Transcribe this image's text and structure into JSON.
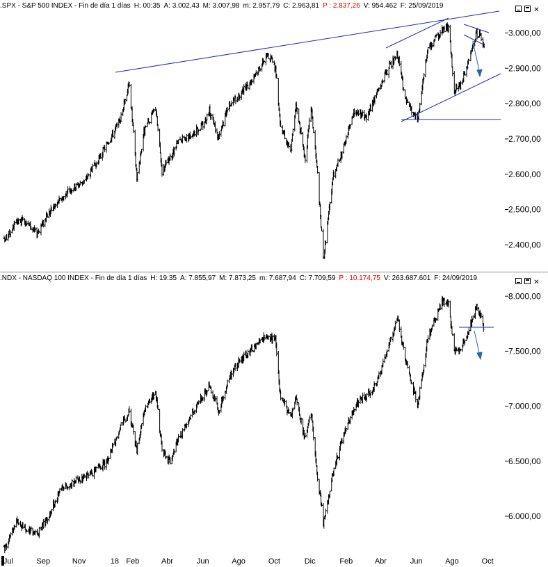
{
  "colors": {
    "trendline": "#1f28b4",
    "arrow": "#2a63a8",
    "price_red": "#e00000",
    "bars": "#000000"
  },
  "spx_header": {
    "symbol": ".SPX - S&P 500 INDEX - Fin de día 1 días",
    "hora": "H: 00:35",
    "apertura": "A: 3.002,43",
    "maximo": "M: 3.007,98",
    "minimo": "m: 2.957,79",
    "cierre": "C: 2.963,81",
    "precio": "P : 2.837,26",
    "volumen": "V: 954.462",
    "fecha": "F: 25/09/2019"
  },
  "ndx_header": {
    "symbol": ".NDX - NASDAQ 100 INDEX - Fin de día 1 días",
    "hora": "H: 19:35",
    "apertura": "A: 7.855,97",
    "maximo": "M: 7.873,25",
    "minimo": "m: 7.687,94",
    "cierre": "C: 7.709,59",
    "precio": "P : 10.174,75",
    "volumen": "V: 263.687.601",
    "fecha": "F: 24/09/2019"
  },
  "window_controls": {
    "minimize": "minimize-icon",
    "maximize": "maximize-icon",
    "close_glyph": "✕"
  },
  "x_axis": {
    "labels": [
      "Jul",
      "Sep",
      "Nov",
      "18",
      "Feb",
      "Abr",
      "Jun",
      "Ago",
      "Oct",
      "Dic",
      "Feb",
      "Abr",
      "Jun",
      "Ago",
      "Oct"
    ]
  },
  "chart_data": [
    {
      "type": "line",
      "name": "S&P 500 INDEX",
      "y_ticks": [
        "2.400,00",
        "2.500,00",
        "2.600,00",
        "2.700,00",
        "2.800,00",
        "2.900,00",
        "3.000,00"
      ],
      "y_tick_values": [
        2400,
        2500,
        2600,
        2700,
        2800,
        2900,
        3000
      ],
      "ylim": [
        2330,
        3050
      ],
      "x": [
        "2017-06-26",
        "2017-07-15",
        "2017-08-01",
        "2017-08-20",
        "2017-09-10",
        "2017-10-01",
        "2017-10-20",
        "2017-11-10",
        "2017-12-01",
        "2017-12-20",
        "2018-01-10",
        "2018-01-26",
        "2018-02-08",
        "2018-02-20",
        "2018-03-12",
        "2018-03-23",
        "2018-04-05",
        "2018-04-20",
        "2018-05-10",
        "2018-06-01",
        "2018-06-12",
        "2018-06-28",
        "2018-07-15",
        "2018-08-01",
        "2018-08-20",
        "2018-09-20",
        "2018-10-03",
        "2018-10-11",
        "2018-10-29",
        "2018-11-07",
        "2018-11-23",
        "2018-12-03",
        "2018-12-14",
        "2018-12-24",
        "2019-01-10",
        "2019-01-25",
        "2019-02-15",
        "2019-03-08",
        "2019-03-25",
        "2019-04-15",
        "2019-04-30",
        "2019-05-13",
        "2019-06-03",
        "2019-06-20",
        "2019-07-15",
        "2019-07-26",
        "2019-08-05",
        "2019-08-15",
        "2019-08-30",
        "2019-09-12",
        "2019-09-20",
        "2019-09-25"
      ],
      "y": [
        2410,
        2460,
        2470,
        2430,
        2490,
        2530,
        2560,
        2580,
        2630,
        2690,
        2750,
        2860,
        2590,
        2720,
        2790,
        2610,
        2640,
        2690,
        2710,
        2740,
        2780,
        2700,
        2800,
        2820,
        2860,
        2940,
        2900,
        2750,
        2660,
        2800,
        2640,
        2790,
        2600,
        2360,
        2600,
        2660,
        2780,
        2760,
        2830,
        2900,
        2940,
        2810,
        2750,
        2950,
        3010,
        3020,
        2840,
        2850,
        2920,
        3000,
        2990,
        2960
      ]
    },
    {
      "type": "line",
      "name": "NASDAQ 100 INDEX",
      "y_ticks": [
        "6.000,00",
        "6.500,00",
        "7.000,00",
        "7.500,00",
        "8.000,00"
      ],
      "y_tick_values": [
        6000,
        6500,
        7000,
        7500,
        8000
      ],
      "ylim": [
        5690,
        8090
      ],
      "x": [
        "2017-06-26",
        "2017-07-15",
        "2017-08-01",
        "2017-08-20",
        "2017-09-10",
        "2017-10-01",
        "2017-10-20",
        "2017-11-10",
        "2017-12-01",
        "2017-12-20",
        "2018-01-10",
        "2018-01-26",
        "2018-02-08",
        "2018-02-20",
        "2018-03-12",
        "2018-03-23",
        "2018-04-05",
        "2018-04-20",
        "2018-05-10",
        "2018-06-01",
        "2018-06-12",
        "2018-06-28",
        "2018-07-15",
        "2018-08-01",
        "2018-08-20",
        "2018-09-20",
        "2018-10-03",
        "2018-10-11",
        "2018-10-29",
        "2018-11-07",
        "2018-11-23",
        "2018-12-03",
        "2018-12-14",
        "2018-12-24",
        "2019-01-10",
        "2019-01-25",
        "2019-02-15",
        "2019-03-08",
        "2019-03-25",
        "2019-04-15",
        "2019-04-30",
        "2019-05-13",
        "2019-06-03",
        "2019-06-20",
        "2019-07-15",
        "2019-07-26",
        "2019-08-05",
        "2019-08-15",
        "2019-08-30",
        "2019-09-12",
        "2019-09-20",
        "2019-09-24"
      ],
      "y": [
        5700,
        5950,
        5900,
        5830,
        6000,
        6250,
        6300,
        6350,
        6420,
        6500,
        6800,
        6950,
        6600,
        6950,
        7150,
        6600,
        6500,
        6700,
        6900,
        7100,
        7200,
        6950,
        7250,
        7400,
        7500,
        7650,
        7600,
        7100,
        6900,
        7050,
        6700,
        6950,
        6350,
        5950,
        6400,
        6700,
        7000,
        7100,
        7200,
        7550,
        7800,
        7450,
        7000,
        7600,
        7950,
        7950,
        7500,
        7500,
        7700,
        7900,
        7800,
        7700
      ]
    }
  ]
}
